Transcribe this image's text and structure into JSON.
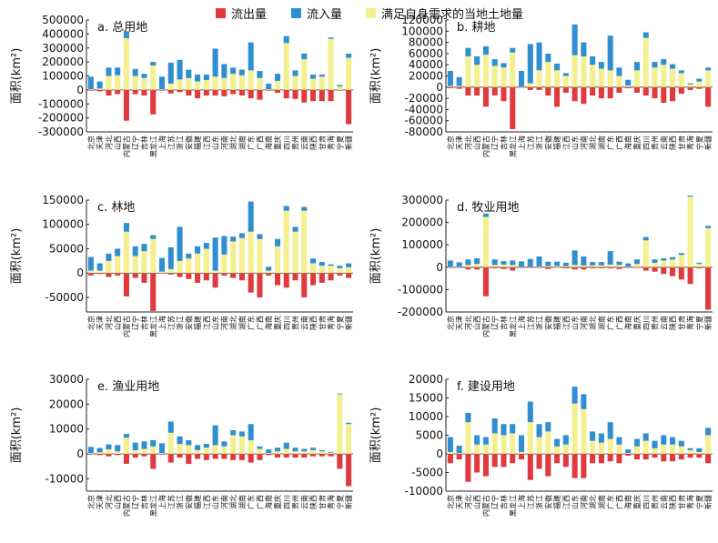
{
  "legend": {
    "items": [
      {
        "label": "流出量",
        "color": "#e03a3e"
      },
      {
        "label": "流入量",
        "color": "#2f8fd1"
      },
      {
        "label": "满足自身需求的当地土地量",
        "color": "#f5f08f"
      }
    ]
  },
  "provinces": [
    "北京",
    "天津",
    "河北",
    "山西",
    "内蒙古",
    "辽宁",
    "吉林",
    "黑龙江",
    "上海",
    "江苏",
    "浙江",
    "安徽",
    "福建",
    "江西",
    "山东",
    "河南",
    "湖北",
    "湖南",
    "广东",
    "广西",
    "海南",
    "重庆",
    "四川",
    "贵州",
    "云南",
    "陕西",
    "甘肃",
    "青海",
    "宁夏",
    "新疆"
  ],
  "chart_data": [
    {
      "type": "bar",
      "title": "a. 总用地",
      "ylabel": "面积(km²)",
      "ylim": [
        -300000,
        500000
      ],
      "yticks": [
        -300000,
        -200000,
        -100000,
        0,
        100000,
        200000,
        300000,
        400000,
        500000
      ],
      "series": [
        {
          "name": "流出量",
          "values": [
            -5000,
            -10000,
            -40000,
            -30000,
            -220000,
            -30000,
            -40000,
            -175000,
            -5000,
            -25000,
            -15000,
            -40000,
            -60000,
            -40000,
            -40000,
            -45000,
            -30000,
            -40000,
            -60000,
            -70000,
            -5000,
            -20000,
            -60000,
            -65000,
            -90000,
            -80000,
            -80000,
            -80000,
            -5000,
            -245000
          ]
        },
        {
          "name": "流入量",
          "values": [
            90000,
            50000,
            60000,
            55000,
            50000,
            50000,
            30000,
            25000,
            90000,
            150000,
            140000,
            60000,
            50000,
            40000,
            200000,
            100000,
            45000,
            40000,
            200000,
            50000,
            40000,
            50000,
            50000,
            40000,
            40000,
            30000,
            15000,
            10000,
            10000,
            30000
          ]
        },
        {
          "name": "满足自身需求的当地土地量",
          "values": [
            5000,
            10000,
            100000,
            105000,
            370000,
            100000,
            85000,
            175000,
            5000,
            45000,
            75000,
            85000,
            60000,
            70000,
            95000,
            85000,
            115000,
            105000,
            140000,
            85000,
            5000,
            65000,
            335000,
            100000,
            220000,
            80000,
            95000,
            365000,
            25000,
            230000
          ]
        }
      ]
    },
    {
      "type": "bar",
      "title": "b. 耕地",
      "ylabel": "面积(km²)",
      "ylim": [
        -80000,
        120000
      ],
      "yticks": [
        -80000,
        -60000,
        -40000,
        -20000,
        0,
        20000,
        40000,
        60000,
        80000,
        100000,
        120000
      ],
      "series": [
        {
          "name": "流出量",
          "values": [
            -2000,
            -3000,
            -15000,
            -15000,
            -35000,
            -15000,
            -25000,
            -75000,
            -1000,
            -5000,
            -5000,
            -15000,
            -35000,
            -10000,
            -25000,
            -30000,
            -15000,
            -20000,
            -20000,
            -10000,
            -2000,
            -10000,
            -15000,
            -20000,
            -28000,
            -25000,
            -12000,
            -5000,
            -3000,
            -35000
          ]
        },
        {
          "name": "流入量",
          "values": [
            27000,
            16000,
            15000,
            15000,
            15000,
            12000,
            8000,
            8000,
            28000,
            70000,
            50000,
            15000,
            12000,
            5000,
            55000,
            25000,
            15000,
            12000,
            62000,
            15000,
            10000,
            15000,
            10000,
            10000,
            10000,
            8000,
            5000,
            2000,
            5000,
            5000
          ]
        },
        {
          "name": "满足自身需求的当地土地量",
          "values": [
            2000,
            2000,
            55000,
            40000,
            58000,
            38000,
            35000,
            62000,
            1000,
            7000,
            30000,
            45000,
            30000,
            20000,
            57000,
            55000,
            40000,
            33000,
            30000,
            20000,
            3000,
            30000,
            88000,
            35000,
            40000,
            33000,
            25000,
            5000,
            10000,
            30000
          ]
        }
      ]
    },
    {
      "type": "bar",
      "title": "c. 林地",
      "ylabel": "面积(km²)",
      "ylim": [
        -80000,
        150000
      ],
      "yticks": [
        -50000,
        0,
        50000,
        100000,
        150000
      ],
      "series": [
        {
          "name": "流出量",
          "values": [
            -5000,
            -2000,
            -8000,
            -5000,
            -48000,
            -10000,
            -20000,
            -78000,
            -1000,
            -3000,
            -8000,
            -12000,
            -20000,
            -15000,
            -30000,
            -5000,
            -10000,
            -15000,
            -40000,
            -50000,
            -5000,
            -25000,
            -30000,
            -15000,
            -50000,
            -25000,
            -20000,
            -15000,
            -5000,
            -10000
          ]
        },
        {
          "name": "流入量",
          "values": [
            28000,
            15000,
            15000,
            15000,
            18000,
            20000,
            15000,
            8000,
            28000,
            45000,
            70000,
            10000,
            15000,
            12000,
            68000,
            38000,
            10000,
            10000,
            62000,
            10000,
            8000,
            15000,
            10000,
            10000,
            8000,
            10000,
            8000,
            3000,
            5000,
            8000
          ]
        },
        {
          "name": "满足自身需求的当地土地量",
          "values": [
            5000,
            5000,
            25000,
            35000,
            85000,
            35000,
            45000,
            70000,
            3000,
            8000,
            25000,
            30000,
            40000,
            50000,
            5000,
            38000,
            65000,
            72000,
            85000,
            70000,
            5000,
            55000,
            128000,
            85000,
            128000,
            20000,
            15000,
            15000,
            10000,
            12000
          ]
        }
      ]
    },
    {
      "type": "bar",
      "title": "d. 牧业用地",
      "ylabel": "面积(km²)",
      "ylim": [
        -200000,
        300000
      ],
      "yticks": [
        -200000,
        -100000,
        0,
        100000,
        200000,
        300000
      ],
      "series": [
        {
          "name": "流出量",
          "values": [
            -2000,
            -2000,
            -10000,
            -10000,
            -130000,
            -5000,
            -8000,
            -15000,
            -1000,
            -3000,
            -2000,
            -8000,
            -2000,
            -5000,
            -10000,
            -10000,
            -5000,
            -5000,
            -5000,
            -8000,
            -2000,
            -3000,
            -15000,
            -20000,
            -30000,
            -40000,
            -55000,
            -75000,
            -5000,
            -190000
          ]
        },
        {
          "name": "流入量",
          "values": [
            28000,
            20000,
            25000,
            25000,
            15000,
            25000,
            15000,
            20000,
            25000,
            35000,
            45000,
            20000,
            20000,
            15000,
            65000,
            40000,
            15000,
            15000,
            60000,
            15000,
            15000,
            20000,
            15000,
            15000,
            10000,
            10000,
            8000,
            5000,
            5000,
            10000
          ]
        },
        {
          "name": "满足自身需求的当地土地量",
          "values": [
            2000,
            2000,
            10000,
            15000,
            225000,
            10000,
            12000,
            10000,
            1000,
            2000,
            3000,
            5000,
            5000,
            5000,
            10000,
            8000,
            8000,
            8000,
            12000,
            10000,
            2000,
            15000,
            120000,
            20000,
            30000,
            35000,
            55000,
            315000,
            15000,
            175000
          ]
        }
      ]
    },
    {
      "type": "bar",
      "title": "e. 渔业用地",
      "ylabel": "面积(km²)",
      "ylim": [
        -15000,
        30000
      ],
      "yticks": [
        -10000,
        0,
        10000,
        20000,
        30000
      ],
      "series": [
        {
          "name": "流出量",
          "values": [
            -300,
            -500,
            -1000,
            -500,
            -4000,
            -1500,
            -1000,
            -6000,
            -300,
            -3500,
            -1500,
            -4000,
            -2000,
            -2500,
            -2000,
            -2000,
            -2500,
            -2500,
            -3500,
            -2500,
            -500,
            -1500,
            -1500,
            -1500,
            -1500,
            -1000,
            -1000,
            -1000,
            -6000,
            -13000
          ]
        },
        {
          "name": "流入量",
          "values": [
            2500,
            1800,
            2000,
            2500,
            1500,
            3000,
            3000,
            2500,
            4000,
            4500,
            3000,
            2000,
            2000,
            1500,
            8000,
            2000,
            2000,
            2000,
            6500,
            1000,
            1500,
            1500,
            2500,
            1500,
            1000,
            1000,
            500,
            300,
            300,
            500
          ]
        },
        {
          "name": "满足自身需求的当地土地量",
          "values": [
            300,
            600,
            1800,
            1000,
            6500,
            1500,
            2000,
            3000,
            300,
            8500,
            4000,
            3500,
            1500,
            2500,
            3500,
            3000,
            7500,
            7000,
            5500,
            2000,
            300,
            1000,
            2000,
            1000,
            1000,
            1500,
            1000,
            500,
            24000,
            12000
          ]
        }
      ]
    },
    {
      "type": "bar",
      "title": "f. 建设用地",
      "ylabel": "面积(km²)",
      "ylim": [
        -10000,
        20000
      ],
      "yticks": [
        -10000,
        -5000,
        0,
        5000,
        10000,
        15000,
        20000
      ],
      "series": [
        {
          "name": "流出量",
          "values": [
            -2500,
            -1500,
            -7500,
            -5000,
            -6000,
            -3500,
            -3500,
            -2500,
            -1500,
            -7000,
            -4000,
            -6000,
            -2500,
            -3500,
            -6500,
            -6500,
            -2500,
            -2500,
            -2000,
            -2500,
            -500,
            -1500,
            -1500,
            -1000,
            -2000,
            -2000,
            -1500,
            -1000,
            -1000,
            -2500
          ]
        },
        {
          "name": "流入量",
          "values": [
            4000,
            2000,
            2500,
            2500,
            2000,
            4000,
            3000,
            2500,
            4500,
            5500,
            3500,
            2500,
            2000,
            2500,
            4500,
            4000,
            2500,
            2500,
            4500,
            2000,
            1000,
            2000,
            2000,
            2000,
            2500,
            2000,
            1500,
            500,
            1000,
            2000
          ]
        },
        {
          "name": "满足自身需求的当地土地量",
          "values": [
            500,
            200,
            8500,
            2500,
            2500,
            5500,
            5000,
            5500,
            500,
            8500,
            4500,
            6000,
            2000,
            2500,
            13500,
            12000,
            3500,
            3000,
            4000,
            2500,
            200,
            2000,
            3500,
            1500,
            2500,
            2500,
            2000,
            1000,
            500,
            5000
          ]
        }
      ]
    }
  ]
}
